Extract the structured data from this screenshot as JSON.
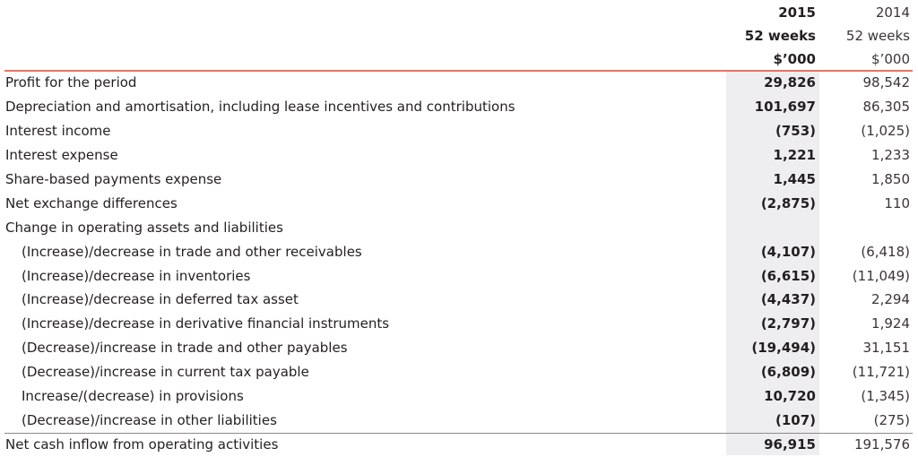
{
  "header": {
    "col2015": [
      "2015",
      "52 weeks",
      "$’000"
    ],
    "col2014": [
      "2014",
      "52 weeks",
      "$’000"
    ]
  },
  "rows": [
    {
      "label": "Profit for the period",
      "v2015": "29,826",
      "v2014": "98,542",
      "indent": false
    },
    {
      "label": "Depreciation and amortisation, including lease incentives and contributions",
      "v2015": "101,697",
      "v2014": "86,305",
      "indent": false
    },
    {
      "label": "Interest income",
      "v2015": "(753)",
      "v2014": "(1,025)",
      "indent": false
    },
    {
      "label": "Interest expense",
      "v2015": "1,221",
      "v2014": "1,233",
      "indent": false
    },
    {
      "label": "Share-based payments expense",
      "v2015": "1,445",
      "v2014": "1,850",
      "indent": false
    },
    {
      "label": "Net exchange differences",
      "v2015": "(2,875)",
      "v2014": "110",
      "indent": false
    },
    {
      "label": "Change in operating assets and liabilities",
      "v2015": "",
      "v2014": "",
      "indent": false
    },
    {
      "label": "(Increase)/decrease in trade and other receivables",
      "v2015": "(4,107)",
      "v2014": "(6,418)",
      "indent": true
    },
    {
      "label": "(Increase)/decrease in inventories",
      "v2015": "(6,615)",
      "v2014": "(11,049)",
      "indent": true
    },
    {
      "label": "(Increase)/decrease in deferred tax asset",
      "v2015": "(4,437)",
      "v2014": "2,294",
      "indent": true
    },
    {
      "label": "(Increase)/decrease in derivative financial instruments",
      "v2015": "(2,797)",
      "v2014": "1,924",
      "indent": true
    },
    {
      "label": "(Decrease)/increase in trade and other payables",
      "v2015": "(19,494)",
      "v2014": "31,151",
      "indent": true
    },
    {
      "label": "(Decrease)/increase in current tax payable",
      "v2015": "(6,809)",
      "v2014": "(11,721)",
      "indent": true
    },
    {
      "label": "Increase/(decrease) in provisions",
      "v2015": "10,720",
      "v2014": "(1,345)",
      "indent": true
    },
    {
      "label": "(Decrease)/increase in other liabilities",
      "v2015": "(107)",
      "v2014": "(275)",
      "indent": true
    },
    {
      "label": "Net cash inflow from operating activities",
      "v2015": "96,915",
      "v2014": "191,576",
      "indent": false
    }
  ],
  "colors": {
    "rule_accent": "#e8735f",
    "shade": "#eeeef0"
  }
}
